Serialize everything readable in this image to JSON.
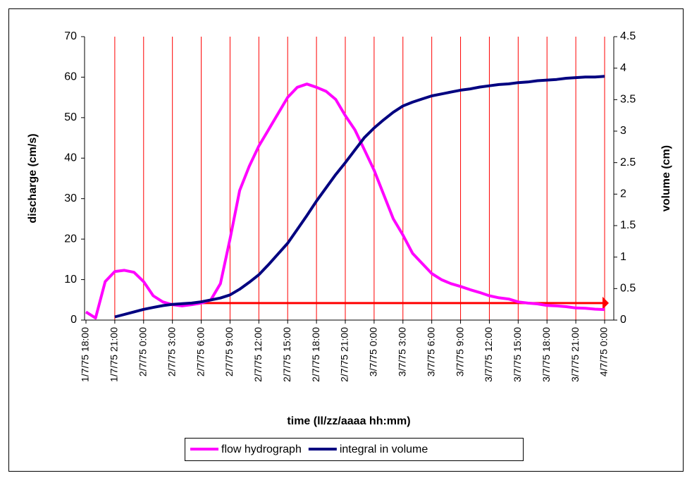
{
  "chart_data": {
    "type": "line",
    "x_label": "time (ll/zz/aaaa hh:mm)",
    "y_label": "discharge (cm/s)",
    "y2_label": "volume (cm)",
    "categories": [
      "1/7/75 18:00",
      null,
      null,
      "1/7/75 21:00",
      null,
      null,
      "2/7/75 0:00",
      null,
      null,
      "2/7/75 3:00",
      null,
      null,
      "2/7/75 6:00",
      null,
      null,
      "2/7/75 9:00",
      null,
      null,
      "2/7/75 12:00",
      null,
      null,
      "2/7/75 15:00",
      null,
      null,
      "2/7/75 18:00",
      null,
      null,
      "2/7/75 21:00",
      null,
      null,
      "3/7/75 0:00",
      null,
      null,
      "3/7/75 3:00",
      null,
      null,
      "3/7/75 6:00",
      null,
      null,
      "3/7/75 9:00",
      null,
      null,
      "3/7/75 12:00",
      null,
      null,
      "3/7/75 15:00",
      null,
      null,
      "3/7/75 18:00",
      null,
      null,
      "3/7/75 21:00",
      null,
      null,
      "4/7/75 0:00"
    ],
    "series": [
      {
        "name": "flow hydrograph",
        "color": "#ff00ff",
        "values": [
          2,
          0.5,
          9.5,
          12,
          12.3,
          11.8,
          9.5,
          6,
          4.5,
          3.8,
          3.5,
          3.8,
          4.2,
          5,
          9,
          20,
          32,
          38,
          43,
          47,
          51,
          55,
          57.5,
          58.3,
          57.5,
          56.5,
          54.5,
          50.5,
          47,
          42,
          37,
          31,
          25,
          21,
          16.5,
          14,
          11.5,
          10,
          9,
          8.3,
          7.5,
          6.8,
          6,
          5.5,
          5.2,
          4.5,
          4.2,
          4,
          3.6,
          3.5,
          3.3,
          3,
          2.9,
          2.7,
          2.6
        ]
      },
      {
        "name": "integral in volume",
        "color": "#000080",
        "axis": "y2",
        "values": [
          null,
          null,
          null,
          0.05,
          0.09,
          0.13,
          0.17,
          0.2,
          0.23,
          0.25,
          0.26,
          0.27,
          0.29,
          0.32,
          0.35,
          0.4,
          0.49,
          0.6,
          0.72,
          0.88,
          1.05,
          1.22,
          1.44,
          1.66,
          1.89,
          2.1,
          2.31,
          2.5,
          2.7,
          2.9,
          3.05,
          3.18,
          3.3,
          3.4,
          3.46,
          3.51,
          3.56,
          3.59,
          3.62,
          3.65,
          3.67,
          3.7,
          3.72,
          3.74,
          3.75,
          3.77,
          3.78,
          3.8,
          3.81,
          3.82,
          3.84,
          3.85,
          3.86,
          3.86,
          3.87
        ]
      }
    ],
    "ylim": [
      0,
      70
    ],
    "yticks": [
      0,
      10,
      20,
      30,
      40,
      50,
      60,
      70
    ],
    "y2lim": [
      0,
      4.5
    ],
    "y2ticks": [
      0,
      0.5,
      1,
      1.5,
      2,
      2.5,
      3,
      3.5,
      4,
      4.5
    ],
    "x_grid": true,
    "grid_color": "#ff0000",
    "reference_line": {
      "y": 4.2,
      "x": [
        "2/7/75 6:00",
        "4/7/75 0:00"
      ],
      "color": "#ff0000"
    },
    "legend": "bottom"
  }
}
